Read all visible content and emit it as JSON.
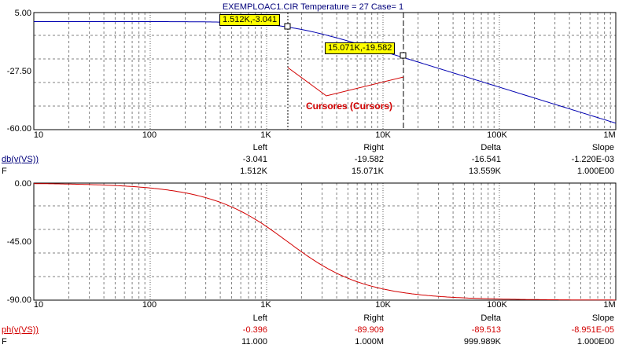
{
  "header": {
    "title": "EXEMPLOAC1.CIR Temperature = 27 Case= 1"
  },
  "x_ticks": [
    "10",
    "100",
    "1K",
    "10K",
    "100K",
    "1M"
  ],
  "top_plot": {
    "y_ticks": [
      "5.00",
      "-27.50",
      "-60.00"
    ]
  },
  "bottom_plot": {
    "y_ticks": [
      "0.00",
      "-45.00",
      "-90.00"
    ]
  },
  "cursors": {
    "left_label": "1.512K,-3.041",
    "right_label": "15.071K,-19.582",
    "annotation": "Cursores (Cursors)"
  },
  "table_top": {
    "headers": [
      "Left",
      "Right",
      "Delta",
      "Slope"
    ],
    "row1_label": "db(v(VS))",
    "row1": [
      "-3.041",
      "-19.582",
      "-16.541",
      "-1.220E-03"
    ],
    "row2_label": "F",
    "row2": [
      "1.512K",
      "15.071K",
      "13.559K",
      "1.000E00"
    ]
  },
  "table_bottom": {
    "headers": [
      "Left",
      "Right",
      "Delta",
      "Slope"
    ],
    "row1_label": "ph(v(VS))",
    "row1": [
      "-0.396",
      "-89.909",
      "-89.513",
      "-8.951E-05"
    ],
    "row2_label": "F",
    "row2": [
      "11.000",
      "1.000M",
      "999.989K",
      "1.000E00"
    ]
  },
  "colors": {
    "magnitude_trace": "#0000b0",
    "phase_trace": "#d20000",
    "grid": "#808080",
    "cursor_label_bg": "#ffff00"
  }
}
